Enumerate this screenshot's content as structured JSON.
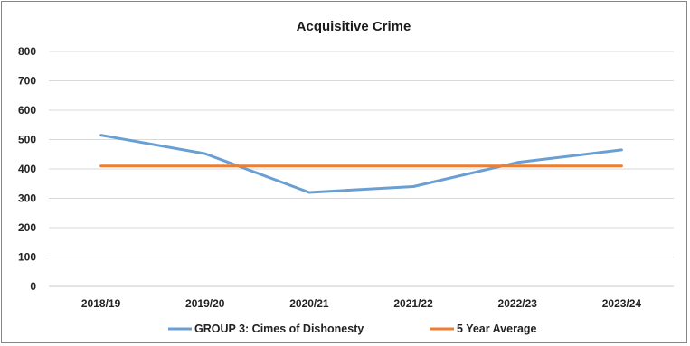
{
  "chart_data": {
    "type": "line",
    "title": "Acquisitive Crime",
    "xlabel": "",
    "ylabel": "",
    "categories": [
      "2018/19",
      "2019/20",
      "2020/21",
      "2021/22",
      "2022/23",
      "2023/24"
    ],
    "ylim": [
      0,
      800
    ],
    "yticks": [
      0,
      100,
      200,
      300,
      400,
      500,
      600,
      700,
      800
    ],
    "grid": true,
    "legend_position": "bottom",
    "series": [
      {
        "name": "GROUP 3: Cimes of Dishonesty",
        "color": "#6a9fd4",
        "values": [
          515,
          452,
          320,
          340,
          422,
          465
        ]
      },
      {
        "name": "5 Year Average",
        "color": "#ed7d31",
        "values": [
          410,
          410,
          410,
          410,
          410,
          410
        ]
      }
    ]
  }
}
